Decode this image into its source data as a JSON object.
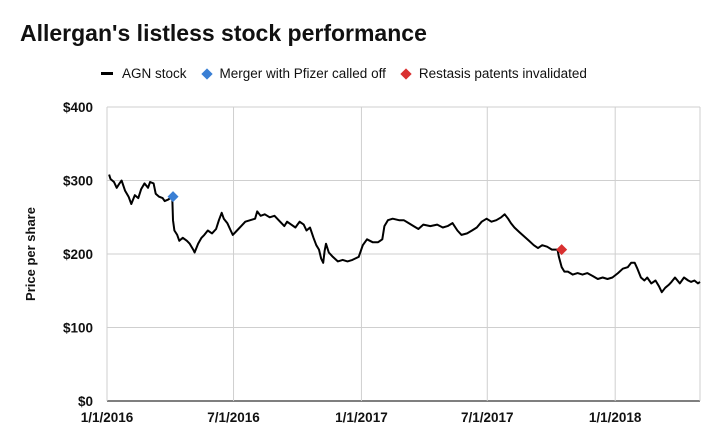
{
  "chart_data": {
    "type": "line",
    "title": "Allergan's listless stock performance",
    "xlabel": "",
    "ylabel": "Price per share",
    "ylim": [
      0,
      400
    ],
    "y_ticks": [
      0,
      100,
      200,
      300,
      400
    ],
    "y_tick_labels": [
      "$0",
      "$100",
      "$200",
      "$300",
      "$400"
    ],
    "x_ticks": [
      "2016-01-01",
      "2016-07-01",
      "2017-01-01",
      "2017-07-01",
      "2018-01-01"
    ],
    "x_tick_labels": [
      "1/1/2016",
      "7/1/2016",
      "1/1/2017",
      "7/1/2017",
      "1/1/2018"
    ],
    "xlim": [
      "2016-01-01",
      "2018-05-03"
    ],
    "grid": "vertical and horizontal",
    "legend_position": "top-left",
    "series": [
      {
        "name": "AGN stock",
        "color": "#000000",
        "points": [
          [
            "2016-01-04",
            308
          ],
          [
            "2016-01-06",
            302
          ],
          [
            "2016-01-11",
            298
          ],
          [
            "2016-01-15",
            290
          ],
          [
            "2016-01-19",
            296
          ],
          [
            "2016-01-22",
            300
          ],
          [
            "2016-01-27",
            286
          ],
          [
            "2016-02-01",
            278
          ],
          [
            "2016-02-05",
            268
          ],
          [
            "2016-02-10",
            280
          ],
          [
            "2016-02-15",
            276
          ],
          [
            "2016-02-19",
            288
          ],
          [
            "2016-02-24",
            296
          ],
          [
            "2016-02-29",
            290
          ],
          [
            "2016-03-03",
            298
          ],
          [
            "2016-03-08",
            296
          ],
          [
            "2016-03-11",
            282
          ],
          [
            "2016-03-16",
            278
          ],
          [
            "2016-03-21",
            276
          ],
          [
            "2016-03-24",
            272
          ],
          [
            "2016-03-29",
            274
          ],
          [
            "2016-04-01",
            276
          ],
          [
            "2016-04-04",
            276
          ],
          [
            "2016-04-05",
            246
          ],
          [
            "2016-04-07",
            232
          ],
          [
            "2016-04-11",
            226
          ],
          [
            "2016-04-14",
            218
          ],
          [
            "2016-04-19",
            222
          ],
          [
            "2016-04-25",
            218
          ],
          [
            "2016-04-29",
            214
          ],
          [
            "2016-05-04",
            206
          ],
          [
            "2016-05-06",
            202
          ],
          [
            "2016-05-11",
            214
          ],
          [
            "2016-05-16",
            222
          ],
          [
            "2016-05-20",
            226
          ],
          [
            "2016-05-25",
            232
          ],
          [
            "2016-05-31",
            228
          ],
          [
            "2016-06-06",
            234
          ],
          [
            "2016-06-10",
            246
          ],
          [
            "2016-06-14",
            256
          ],
          [
            "2016-06-17",
            248
          ],
          [
            "2016-06-22",
            242
          ],
          [
            "2016-06-27",
            232
          ],
          [
            "2016-06-30",
            226
          ],
          [
            "2016-07-06",
            232
          ],
          [
            "2016-07-12",
            238
          ],
          [
            "2016-07-18",
            244
          ],
          [
            "2016-07-25",
            246
          ],
          [
            "2016-08-01",
            248
          ],
          [
            "2016-08-04",
            258
          ],
          [
            "2016-08-09",
            252
          ],
          [
            "2016-08-15",
            254
          ],
          [
            "2016-08-22",
            250
          ],
          [
            "2016-08-29",
            252
          ],
          [
            "2016-09-06",
            244
          ],
          [
            "2016-09-12",
            238
          ],
          [
            "2016-09-16",
            244
          ],
          [
            "2016-09-22",
            240
          ],
          [
            "2016-09-28",
            236
          ],
          [
            "2016-10-04",
            244
          ],
          [
            "2016-10-10",
            240
          ],
          [
            "2016-10-14",
            232
          ],
          [
            "2016-10-19",
            236
          ],
          [
            "2016-10-24",
            222
          ],
          [
            "2016-10-28",
            212
          ],
          [
            "2016-11-01",
            206
          ],
          [
            "2016-11-04",
            194
          ],
          [
            "2016-11-07",
            188
          ],
          [
            "2016-11-09",
            204
          ],
          [
            "2016-11-11",
            214
          ],
          [
            "2016-11-15",
            202
          ],
          [
            "2016-11-21",
            196
          ],
          [
            "2016-11-28",
            190
          ],
          [
            "2016-12-05",
            192
          ],
          [
            "2016-12-12",
            190
          ],
          [
            "2016-12-19",
            192
          ],
          [
            "2016-12-28",
            196
          ],
          [
            "2017-01-03",
            212
          ],
          [
            "2017-01-09",
            220
          ],
          [
            "2017-01-17",
            216
          ],
          [
            "2017-01-25",
            216
          ],
          [
            "2017-01-31",
            220
          ],
          [
            "2017-02-03",
            238
          ],
          [
            "2017-02-08",
            246
          ],
          [
            "2017-02-15",
            248
          ],
          [
            "2017-02-24",
            246
          ],
          [
            "2017-03-03",
            246
          ],
          [
            "2017-03-10",
            242
          ],
          [
            "2017-03-17",
            238
          ],
          [
            "2017-03-24",
            234
          ],
          [
            "2017-03-31",
            240
          ],
          [
            "2017-04-10",
            238
          ],
          [
            "2017-04-20",
            240
          ],
          [
            "2017-04-28",
            236
          ],
          [
            "2017-05-05",
            238
          ],
          [
            "2017-05-12",
            242
          ],
          [
            "2017-05-19",
            232
          ],
          [
            "2017-05-25",
            226
          ],
          [
            "2017-06-02",
            228
          ],
          [
            "2017-06-09",
            232
          ],
          [
            "2017-06-16",
            236
          ],
          [
            "2017-06-23",
            244
          ],
          [
            "2017-06-30",
            248
          ],
          [
            "2017-07-07",
            244
          ],
          [
            "2017-07-14",
            246
          ],
          [
            "2017-07-21",
            250
          ],
          [
            "2017-07-26",
            254
          ],
          [
            "2017-07-31",
            248
          ],
          [
            "2017-08-04",
            242
          ],
          [
            "2017-08-09",
            236
          ],
          [
            "2017-08-16",
            230
          ],
          [
            "2017-08-23",
            224
          ],
          [
            "2017-08-30",
            218
          ],
          [
            "2017-09-06",
            212
          ],
          [
            "2017-09-12",
            208
          ],
          [
            "2017-09-18",
            212
          ],
          [
            "2017-09-25",
            210
          ],
          [
            "2017-10-02",
            206
          ],
          [
            "2017-10-10",
            206
          ],
          [
            "2017-10-12",
            196
          ],
          [
            "2017-10-16",
            182
          ],
          [
            "2017-10-20",
            176
          ],
          [
            "2017-10-25",
            176
          ],
          [
            "2017-11-01",
            172
          ],
          [
            "2017-11-08",
            174
          ],
          [
            "2017-11-15",
            172
          ],
          [
            "2017-11-22",
            174
          ],
          [
            "2017-11-30",
            170
          ],
          [
            "2017-12-07",
            166
          ],
          [
            "2017-12-14",
            168
          ],
          [
            "2017-12-21",
            166
          ],
          [
            "2017-12-28",
            168
          ],
          [
            "2018-01-05",
            174
          ],
          [
            "2018-01-12",
            180
          ],
          [
            "2018-01-19",
            182
          ],
          [
            "2018-01-24",
            188
          ],
          [
            "2018-01-29",
            188
          ],
          [
            "2018-02-02",
            180
          ],
          [
            "2018-02-07",
            168
          ],
          [
            "2018-02-12",
            164
          ],
          [
            "2018-02-16",
            168
          ],
          [
            "2018-02-22",
            160
          ],
          [
            "2018-02-28",
            164
          ],
          [
            "2018-03-05",
            156
          ],
          [
            "2018-03-09",
            148
          ],
          [
            "2018-03-14",
            154
          ],
          [
            "2018-03-19",
            158
          ],
          [
            "2018-03-23",
            162
          ],
          [
            "2018-03-28",
            168
          ],
          [
            "2018-04-04",
            160
          ],
          [
            "2018-04-10",
            168
          ],
          [
            "2018-04-16",
            164
          ],
          [
            "2018-04-20",
            162
          ],
          [
            "2018-04-25",
            164
          ],
          [
            "2018-04-30",
            160
          ],
          [
            "2018-05-03",
            162
          ]
        ]
      }
    ],
    "markers": [
      {
        "name": "Merger with Pfizer called off",
        "date": "2016-04-05",
        "value": 278,
        "color": "#3a7fd4",
        "shape": "diamond"
      },
      {
        "name": "Restasis patents invalidated",
        "date": "2017-10-16",
        "value": 206,
        "color": "#d93030",
        "shape": "diamond"
      }
    ]
  }
}
